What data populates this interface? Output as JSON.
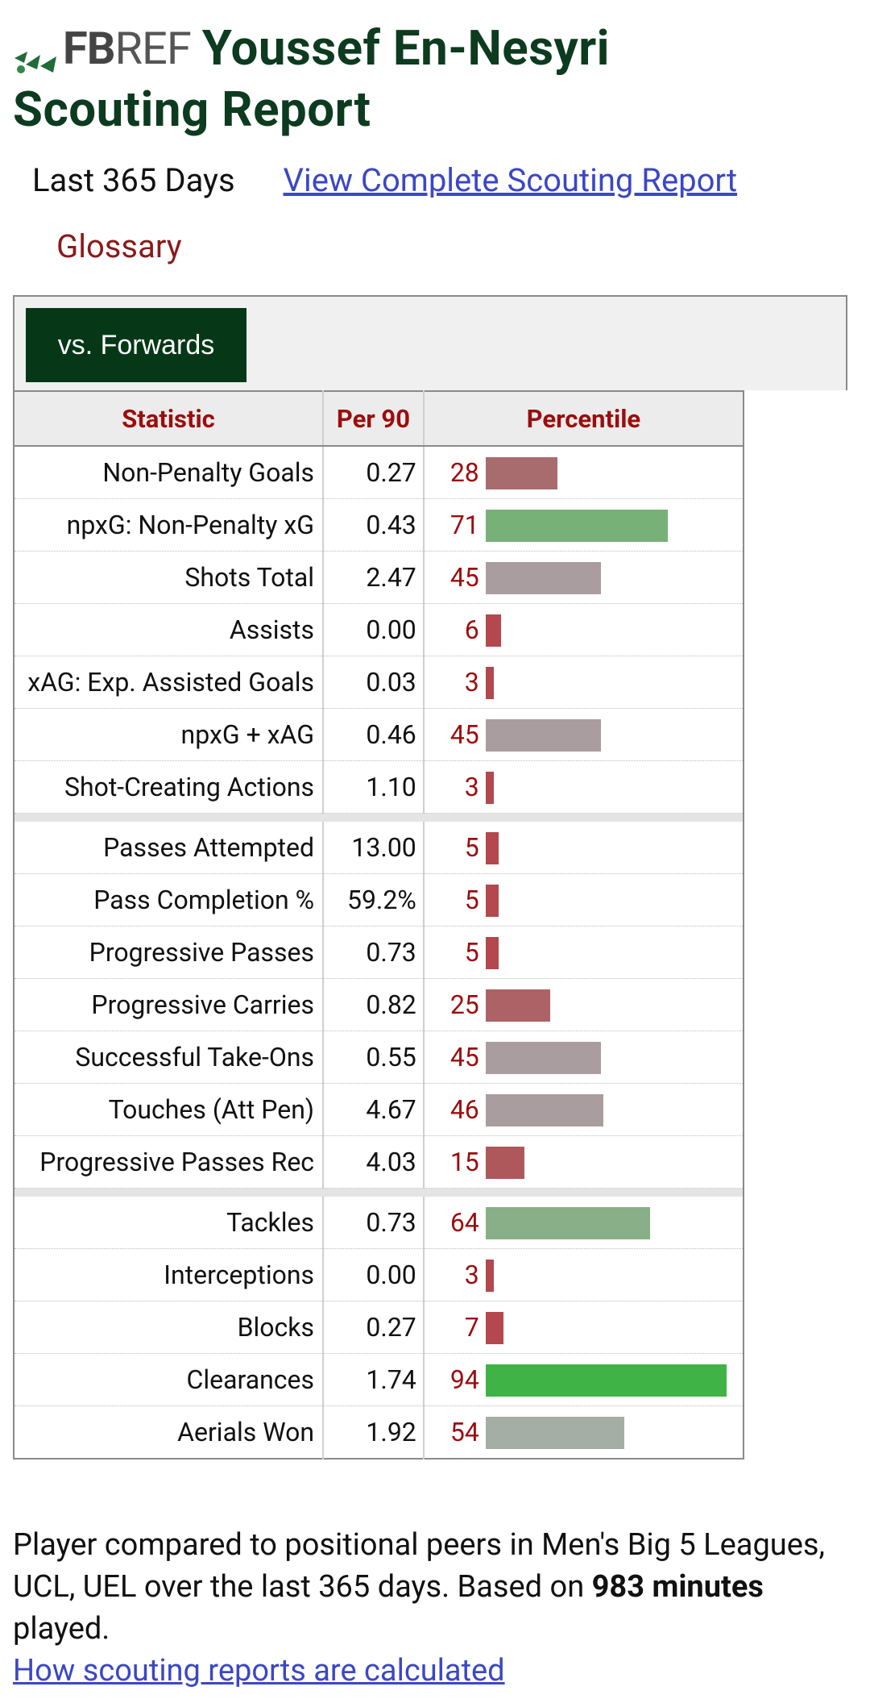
{
  "header": {
    "logo_fb": "FB",
    "logo_ref": "REF",
    "title_line1": "Youssef En-Nesyri",
    "title_line2": "Scouting Report"
  },
  "subnav": {
    "period": "Last 365 Days",
    "complete_link": "View Complete Scouting Report",
    "glossary": "Glossary"
  },
  "filter": {
    "active": "vs. Forwards"
  },
  "table": {
    "headers": [
      "Statistic",
      "Per 90",
      "Percentile"
    ],
    "groups": [
      [
        {
          "stat": "Non-Penalty Goals",
          "per90": "0.27",
          "pct": 28,
          "color": "#a86b6e"
        },
        {
          "stat": "npxG: Non-Penalty xG",
          "per90": "0.43",
          "pct": 71,
          "color": "#78b178"
        },
        {
          "stat": "Shots Total",
          "per90": "2.47",
          "pct": 45,
          "color": "#aa9d9f"
        },
        {
          "stat": "Assists",
          "per90": "0.00",
          "pct": 6,
          "color": "#b3484e"
        },
        {
          "stat": "xAG: Exp. Assisted Goals",
          "per90": "0.03",
          "pct": 3,
          "color": "#b3484e"
        },
        {
          "stat": "npxG + xAG",
          "per90": "0.46",
          "pct": 45,
          "color": "#aa9d9f"
        },
        {
          "stat": "Shot-Creating Actions",
          "per90": "1.10",
          "pct": 3,
          "color": "#b3484e"
        }
      ],
      [
        {
          "stat": "Passes Attempted",
          "per90": "13.00",
          "pct": 5,
          "color": "#b3484e"
        },
        {
          "stat": "Pass Completion %",
          "per90": "59.2%",
          "pct": 5,
          "color": "#b3484e"
        },
        {
          "stat": "Progressive Passes",
          "per90": "0.73",
          "pct": 5,
          "color": "#b3484e"
        },
        {
          "stat": "Progressive Carries",
          "per90": "0.82",
          "pct": 25,
          "color": "#ad6366"
        },
        {
          "stat": "Successful Take-Ons",
          "per90": "0.55",
          "pct": 45,
          "color": "#aa9d9f"
        },
        {
          "stat": "Touches (Att Pen)",
          "per90": "4.67",
          "pct": 46,
          "color": "#aa9d9f"
        },
        {
          "stat": "Progressive Passes Rec",
          "per90": "4.03",
          "pct": 15,
          "color": "#ae585c"
        }
      ],
      [
        {
          "stat": "Tackles",
          "per90": "0.73",
          "pct": 64,
          "color": "#88af88"
        },
        {
          "stat": "Interceptions",
          "per90": "0.00",
          "pct": 3,
          "color": "#b3484e"
        },
        {
          "stat": "Blocks",
          "per90": "0.27",
          "pct": 7,
          "color": "#b3484e"
        },
        {
          "stat": "Clearances",
          "per90": "1.74",
          "pct": 94,
          "color": "#40b347"
        },
        {
          "stat": "Aerials Won",
          "per90": "1.92",
          "pct": 54,
          "color": "#a5aea5"
        }
      ]
    ]
  },
  "footer": {
    "text_before": "Player compared to positional peers in Men's Big 5 Leagues, UCL, UEL over the last 365 days. Based on ",
    "minutes_bold": "983 minutes",
    "text_after": " played.",
    "link": "How scouting reports are calculated"
  }
}
